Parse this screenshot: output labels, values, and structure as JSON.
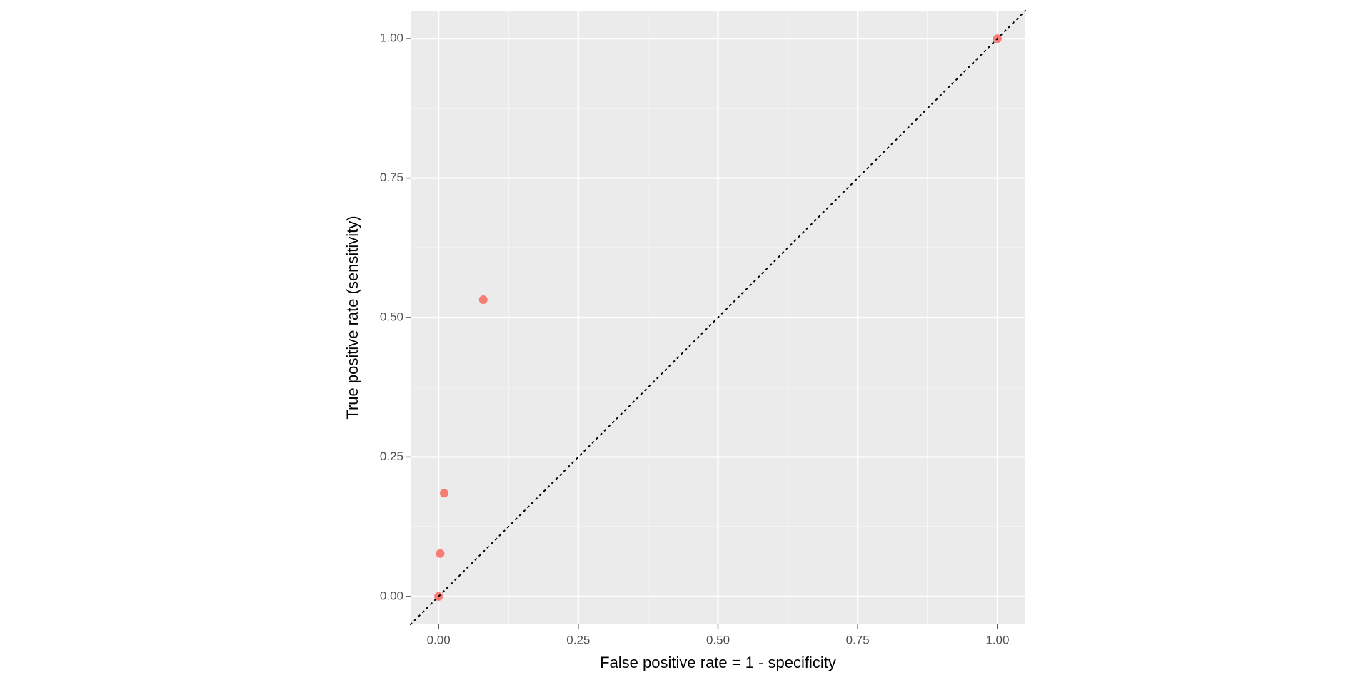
{
  "chart_data": {
    "type": "scatter",
    "x_label": "False positive rate = 1 - specificity",
    "y_label": "True positive rate (sensitivity)",
    "series": [
      {
        "color": "#F8766D",
        "x": [
          0,
          0.003,
          0.01,
          0.08,
          1
        ],
        "values": [
          0,
          0.077,
          0.185,
          0.532,
          1
        ]
      }
    ],
    "xlim": [
      -0.05,
      1.05
    ],
    "ylim": [
      -0.05,
      1.05
    ],
    "xticks": [
      {
        "value": 0,
        "label": "0.00"
      },
      0.25,
      {
        "value": 0.5,
        "label": "0.50"
      },
      0.75,
      {
        "value": 1,
        "label": "1.00"
      }
    ],
    "yticks": [
      {
        "value": 0,
        "label": "0.00"
      },
      0.25,
      {
        "value": 0.5,
        "label": "0.50"
      },
      0.75,
      {
        "value": 1,
        "label": "1.00"
      }
    ],
    "grid": true
  }
}
